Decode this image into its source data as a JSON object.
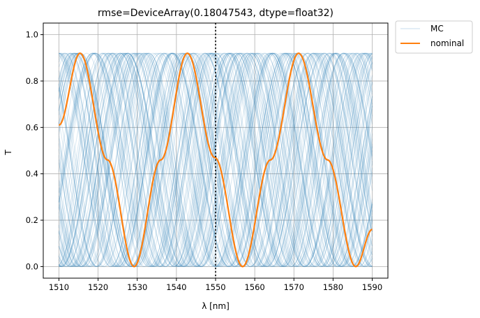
{
  "chart_data": {
    "type": "line",
    "title": "rmse=DeviceArray(0.18047543, dtype=float32)",
    "xlabel": "λ [nm]",
    "ylabel": "T",
    "xlim": [
      1506,
      1594
    ],
    "ylim": [
      -0.05,
      1.05
    ],
    "x_ticks": [
      "1510",
      "1520",
      "1530",
      "1540",
      "1550",
      "1560",
      "1570",
      "1580",
      "1590"
    ],
    "y_ticks": [
      "0.0",
      "0.2",
      "0.4",
      "0.6",
      "0.8",
      "1.0"
    ],
    "grid": true,
    "legend_position": "outside-top-right",
    "vertical_line_x": 1550,
    "series": [
      {
        "name": "MC",
        "color": "#1f77b4",
        "description": "many Monte Carlo sinusoidal transmission curves between 0.0 and 0.92, period ~28 nm, random phases",
        "count": 100,
        "min": 0.0,
        "max": 0.92
      },
      {
        "name": "nominal",
        "color": "#ff7f0e",
        "x": [
          1510,
          1515.4,
          1522.4,
          1529.2,
          1536.0,
          1542.8,
          1549.8,
          1556.9,
          1564.0,
          1571.2,
          1578.6,
          1585.8,
          1590
        ],
        "y": [
          0.61,
          0.92,
          0.46,
          0.0,
          0.46,
          0.92,
          0.47,
          0.0,
          0.46,
          0.92,
          0.46,
          0.0,
          0.16
        ]
      }
    ]
  }
}
